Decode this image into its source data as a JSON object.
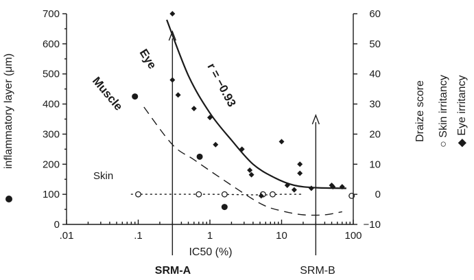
{
  "chart_data": {
    "type": "scatter",
    "x_scale": "log",
    "xlim": [
      0.01,
      100
    ],
    "x_ticks": [
      ".01",
      ".1",
      "1",
      "10",
      "100"
    ],
    "xlabel": "IC50 (%)",
    "left_axis": {
      "label": "inflammatory layer (μm)",
      "ylim": [
        0,
        700
      ],
      "ticks": [
        "0",
        "100",
        "200",
        "300",
        "400",
        "500",
        "600",
        "700"
      ]
    },
    "right_axis": {
      "label": "Draize score",
      "ylim": [
        -10,
        60
      ],
      "ticks": [
        "-10",
        "0",
        "10",
        "20",
        "30",
        "40",
        "50",
        "60"
      ]
    },
    "legend": [
      {
        "symbol": "●",
        "text": "inflammatory layer (μm)"
      },
      {
        "symbol": "○",
        "text": "Skin irritancy"
      },
      {
        "symbol": "◆",
        "text": "Eye irritancy"
      }
    ],
    "series": [
      {
        "name": "inflammatory layer (μm)",
        "axis": "left",
        "marker": "filled-circle",
        "points": [
          [
            0.09,
            425
          ],
          [
            0.72,
            225
          ],
          [
            1.6,
            58
          ]
        ]
      },
      {
        "name": "Skin irritancy",
        "axis": "right",
        "marker": "open-circle",
        "points": [
          [
            0.1,
            0
          ],
          [
            0.7,
            0
          ],
          [
            1.6,
            0
          ],
          [
            5.5,
            0
          ],
          [
            7.5,
            0
          ],
          [
            95,
            -0.5
          ]
        ]
      },
      {
        "name": "Eye irritancy",
        "axis": "right",
        "marker": "diamond",
        "points": [
          [
            0.3,
            60
          ],
          [
            0.3,
            38
          ],
          [
            0.36,
            33
          ],
          [
            0.6,
            28.5
          ],
          [
            1,
            25.5
          ],
          [
            1.2,
            16.5
          ],
          [
            2.8,
            15
          ],
          [
            3.6,
            8
          ],
          [
            3.8,
            6.5
          ],
          [
            5.2,
            -0.5
          ],
          [
            10,
            17.5
          ],
          [
            12,
            3
          ],
          [
            15,
            1.5
          ],
          [
            18,
            7
          ],
          [
            18,
            10
          ],
          [
            26,
            2
          ],
          [
            50,
            3
          ],
          [
            52,
            2.5
          ],
          [
            70,
            2.5
          ]
        ]
      }
    ],
    "curves": [
      {
        "label": "Eye",
        "axis": "right",
        "style": "solid",
        "points": [
          [
            0.25,
            58
          ],
          [
            0.5,
            39.5
          ],
          [
            1,
            27
          ],
          [
            2,
            18
          ],
          [
            4,
            10
          ],
          [
            8,
            5.5
          ],
          [
            15,
            3
          ],
          [
            30,
            2.2
          ],
          [
            80,
            2
          ]
        ]
      },
      {
        "label": "Muscle",
        "axis": "left",
        "style": "dashed",
        "points": [
          [
            0.12,
            390
          ],
          [
            0.3,
            265
          ],
          [
            0.6,
            215
          ],
          [
            1.5,
            150
          ],
          [
            5,
            70
          ],
          [
            10,
            45
          ],
          [
            20,
            32
          ],
          [
            40,
            32
          ],
          [
            70,
            42
          ]
        ]
      },
      {
        "label": "Skin",
        "axis": "left",
        "style": "dotted",
        "points": [
          [
            0.08,
            100
          ],
          [
            1,
            100
          ],
          [
            5,
            98
          ],
          [
            10,
            100
          ],
          [
            20,
            100
          ]
        ]
      }
    ],
    "annotations": [
      {
        "text": "r = −0.93",
        "x": 2,
        "y_left": 400
      },
      {
        "text": "SRM-A",
        "x": 0.3,
        "bold": true
      },
      {
        "text": "SRM-B",
        "x": 30,
        "bold": false
      }
    ],
    "grid": false
  }
}
